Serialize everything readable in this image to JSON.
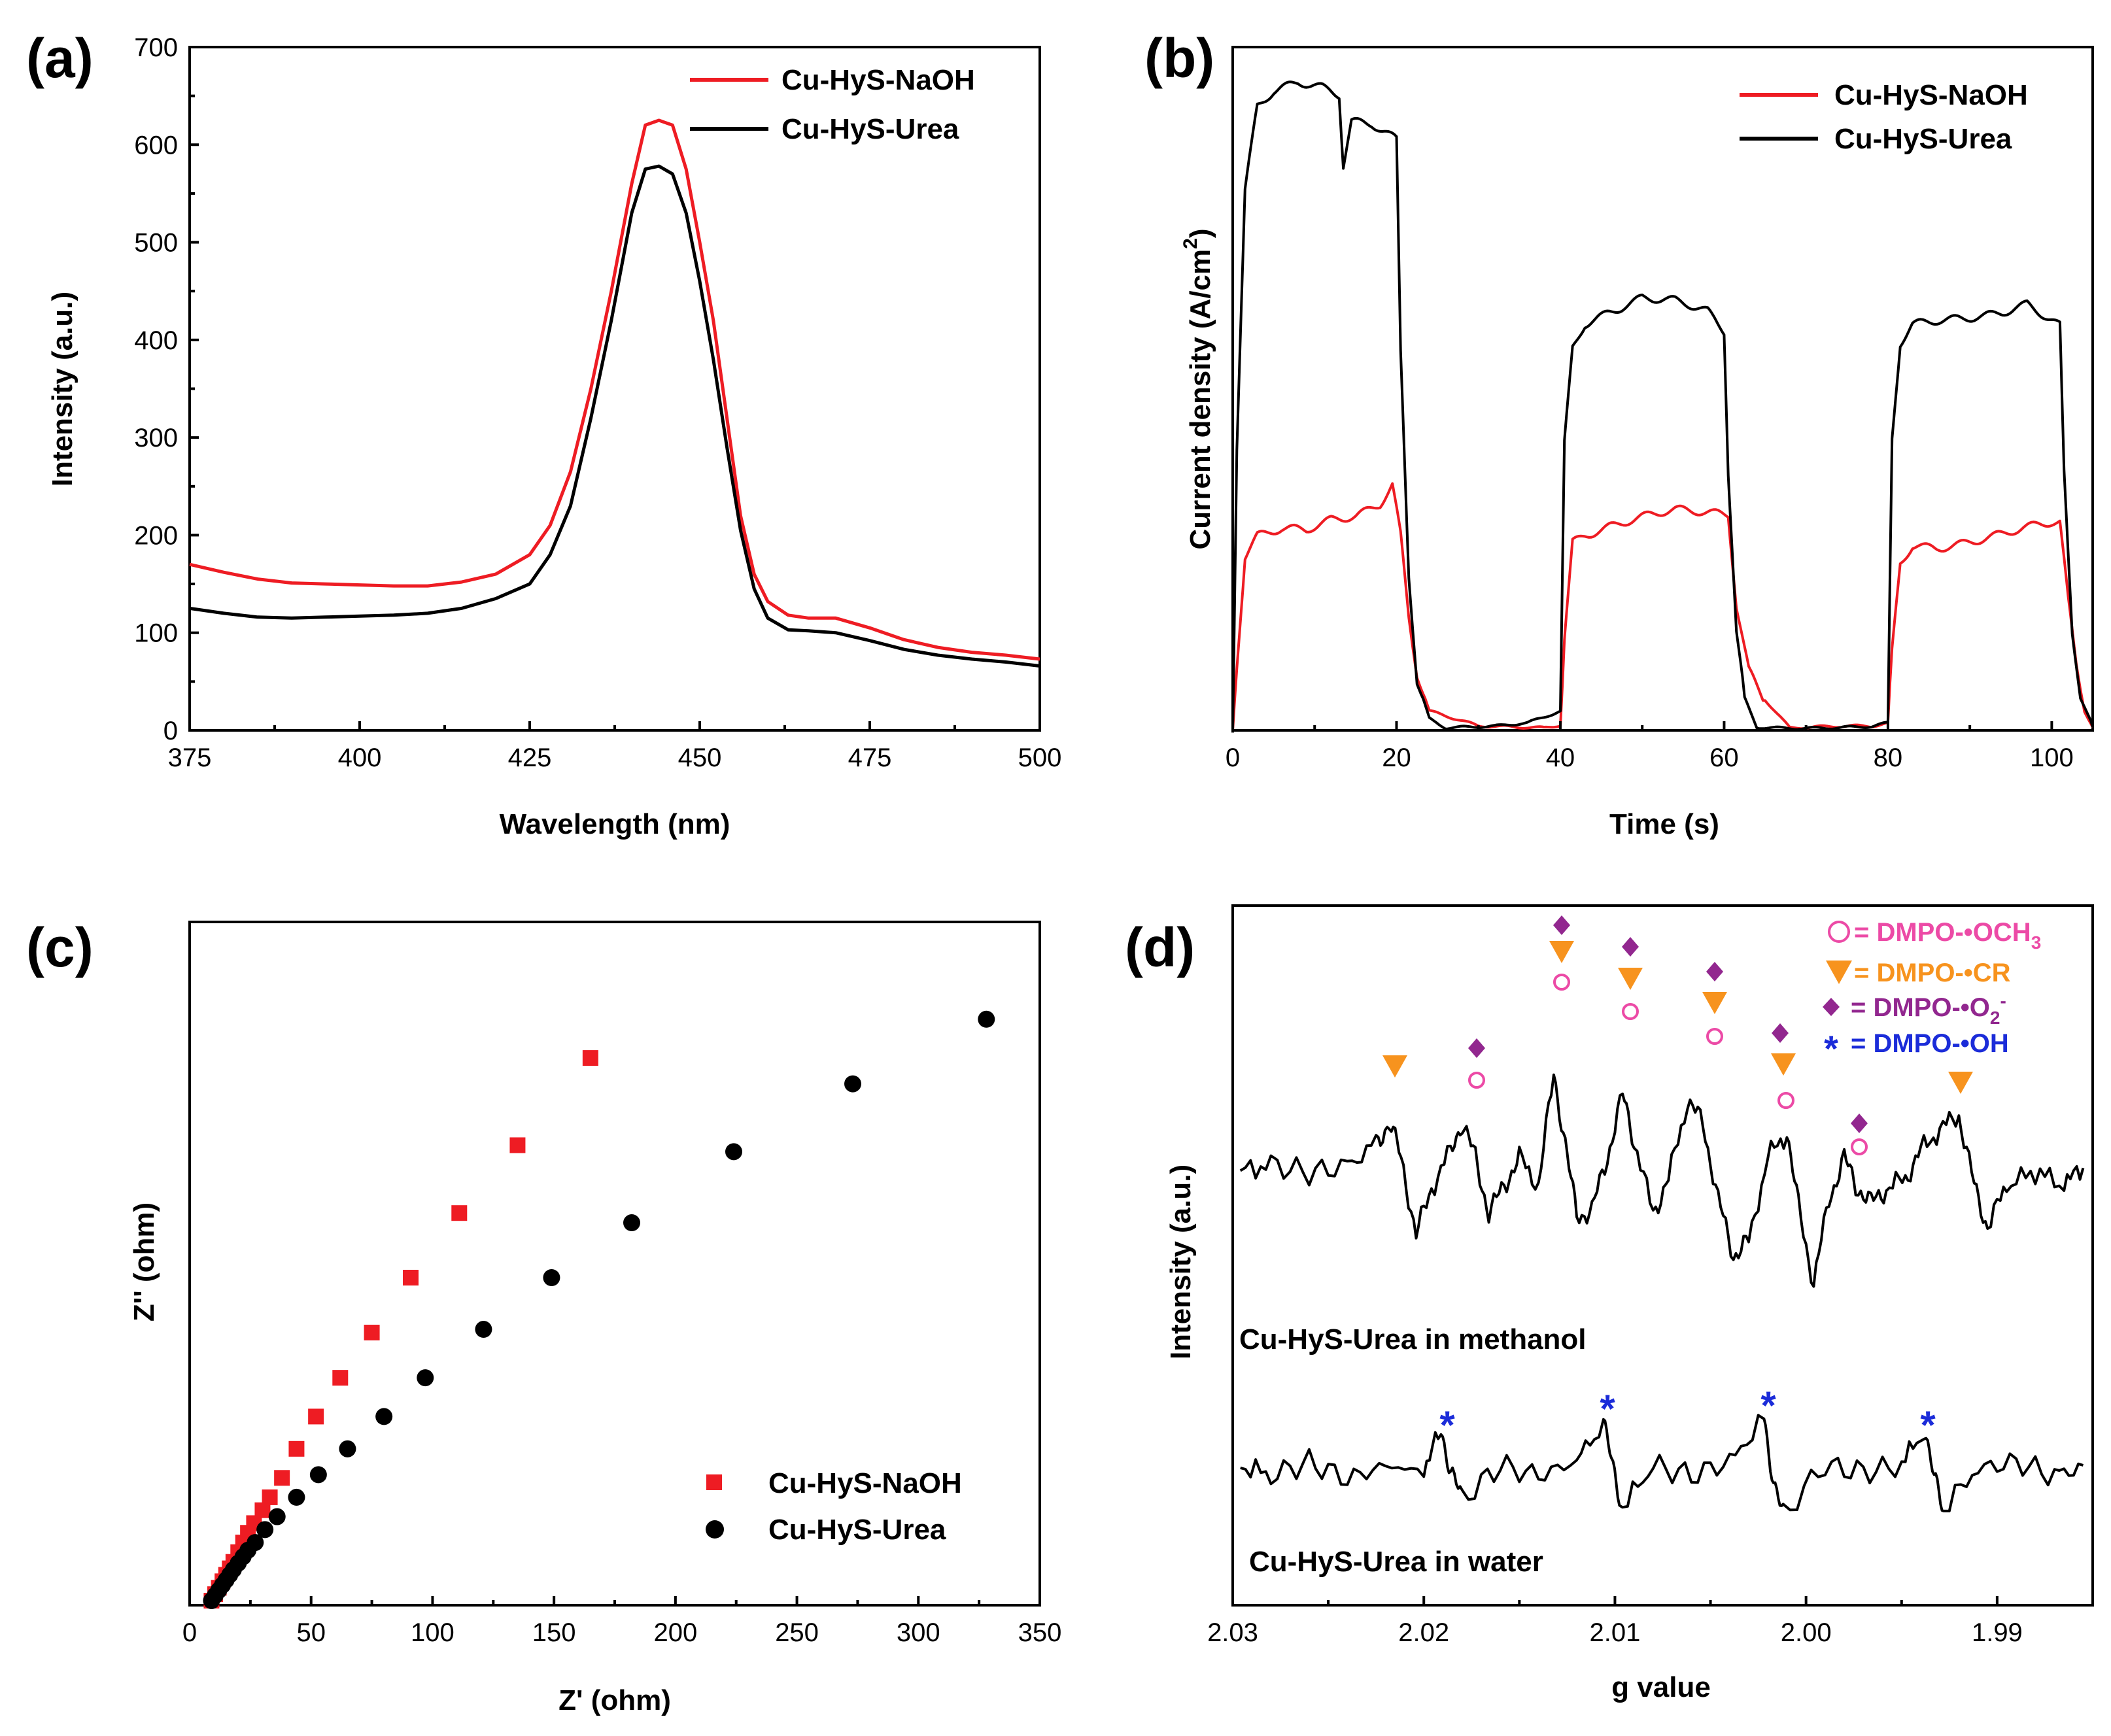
{
  "colors": {
    "naoh": "#ee1c23",
    "urea": "#000000",
    "ring": "#ec4aa6",
    "triangle": "#f7931e",
    "diamond": "#92278f",
    "star": "#1b2cd9"
  },
  "chart_data": [
    {
      "id": "a",
      "type": "line",
      "panel_label": "(a)",
      "title": "",
      "xlabel": "Wavelength (nm)",
      "ylabel": "Intensity (a.u.)",
      "xlim": [
        375,
        500
      ],
      "ylim": [
        0,
        700
      ],
      "xticks": [
        375,
        400,
        425,
        450,
        475,
        500
      ],
      "yticks": [
        0,
        100,
        200,
        300,
        400,
        500,
        600,
        700
      ],
      "legend": [
        "Cu-HyS-NaOH",
        "Cu-HyS-Urea"
      ],
      "series": [
        {
          "name": "Cu-HyS-NaOH",
          "color_key": "naoh",
          "x": [
            375,
            380,
            385,
            390,
            395,
            400,
            405,
            410,
            415,
            420,
            425,
            428,
            431,
            434,
            437,
            440,
            442,
            444,
            446,
            448,
            450,
            452,
            454,
            456,
            458,
            460,
            463,
            466,
            470,
            475,
            480,
            485,
            490,
            495,
            500
          ],
          "y": [
            170,
            162,
            155,
            151,
            150,
            149,
            148,
            148,
            152,
            160,
            180,
            210,
            265,
            350,
            450,
            560,
            620,
            625,
            620,
            575,
            500,
            420,
            320,
            220,
            160,
            132,
            118,
            115,
            115,
            105,
            93,
            85,
            80,
            77,
            73
          ]
        },
        {
          "name": "Cu-HyS-Urea",
          "color_key": "urea",
          "x": [
            375,
            380,
            385,
            390,
            395,
            400,
            405,
            410,
            415,
            420,
            425,
            428,
            431,
            434,
            437,
            440,
            442,
            444,
            446,
            448,
            450,
            452,
            454,
            456,
            458,
            460,
            463,
            466,
            470,
            475,
            480,
            485,
            490,
            495,
            500
          ],
          "y": [
            125,
            120,
            116,
            115,
            116,
            117,
            118,
            120,
            125,
            135,
            150,
            180,
            230,
            320,
            420,
            530,
            575,
            578,
            570,
            530,
            460,
            380,
            290,
            205,
            145,
            115,
            103,
            102,
            100,
            92,
            83,
            77,
            73,
            70,
            66
          ]
        }
      ]
    },
    {
      "id": "b",
      "type": "line",
      "panel_label": "(b)",
      "title": "",
      "xlabel": "Time (s)",
      "ylabel": "Current density (A/cm2)",
      "ylabel_main": "Current density (A/cm",
      "ylabel_sup": "2",
      "ylabel_tail": ")",
      "xlim": [
        0,
        105
      ],
      "ylim": [
        0,
        1
      ],
      "xticks": [
        0,
        20,
        40,
        60,
        80,
        100
      ],
      "yticks": [],
      "legend": [
        "Cu-HyS-NaOH",
        "Cu-HyS-Urea"
      ],
      "series": [
        {
          "name": "Cu-HyS-NaOH",
          "color_key": "naoh",
          "x": [
            0,
            0.5,
            1.5,
            3,
            6,
            9,
            12,
            15,
            18,
            19.5,
            20.5,
            21.5,
            22.5,
            24,
            30,
            38,
            40,
            40.5,
            41.5,
            43,
            46,
            50,
            54,
            58,
            60.5,
            61.5,
            63,
            65,
            68,
            78,
            80,
            80.5,
            81.5,
            83,
            86,
            90,
            95,
            100,
            101,
            102,
            103,
            104,
            105
          ],
          "y": [
            0,
            0.1,
            0.27,
            0.3,
            0.31,
            0.31,
            0.33,
            0.34,
            0.36,
            0.39,
            0.31,
            0.18,
            0.09,
            0.03,
            0.005,
            0.005,
            0.01,
            0.15,
            0.3,
            0.31,
            0.32,
            0.33,
            0.34,
            0.34,
            0.34,
            0.2,
            0.1,
            0.05,
            0.005,
            0.005,
            0.01,
            0.12,
            0.26,
            0.29,
            0.29,
            0.3,
            0.31,
            0.32,
            0.32,
            0.2,
            0.1,
            0.03,
            0.005
          ]
        },
        {
          "name": "Cu-HyS-Urea",
          "color_key": "urea",
          "x": [
            0,
            0.5,
            1.5,
            3,
            5,
            8,
            11,
            13,
            13.5,
            14.5,
            17,
            20,
            20.5,
            21.5,
            22.5,
            24,
            26,
            32,
            36,
            38,
            40,
            40.5,
            41.5,
            43,
            46,
            50,
            54,
            58,
            60,
            60.5,
            61.5,
            62.5,
            64,
            66,
            72,
            78,
            80,
            80.5,
            81.5,
            83,
            86,
            90,
            94,
            97,
            99,
            101,
            101.5,
            102.5,
            103.5,
            105
          ],
          "y": [
            0,
            0.45,
            0.85,
            0.98,
            1.0,
            1.01,
            1.0,
            0.99,
            0.88,
            0.95,
            0.95,
            0.93,
            0.6,
            0.25,
            0.08,
            0.02,
            0.005,
            0.005,
            0.01,
            0.02,
            0.03,
            0.45,
            0.6,
            0.64,
            0.66,
            0.68,
            0.67,
            0.65,
            0.62,
            0.4,
            0.15,
            0.05,
            0.005,
            0.005,
            0.005,
            0.005,
            0.01,
            0.45,
            0.6,
            0.63,
            0.64,
            0.65,
            0.66,
            0.67,
            0.65,
            0.63,
            0.4,
            0.15,
            0.05,
            0.005
          ]
        }
      ]
    },
    {
      "id": "c",
      "type": "scatter",
      "panel_label": "(c)",
      "title": "",
      "xlabel": "Z' (ohm)",
      "ylabel": "Z'' (ohm)",
      "xlim": [
        0,
        350
      ],
      "ylim": [
        0,
        1
      ],
      "xticks": [
        0,
        50,
        100,
        150,
        200,
        250,
        300,
        350
      ],
      "yticks": [],
      "legend": [
        "Cu-HyS-NaOH",
        "Cu-HyS-Urea"
      ],
      "series": [
        {
          "name": "Cu-HyS-NaOH",
          "marker": "square",
          "color_key": "naoh",
          "x": [
            9,
            10.5,
            12,
            13.5,
            15,
            16.5,
            18,
            20,
            22,
            24,
            26.5,
            30,
            33,
            38,
            44,
            52,
            62,
            75,
            91,
            111,
            135,
            165
          ],
          "y": [
            0.0,
            0.01,
            0.02,
            0.03,
            0.04,
            0.05,
            0.06,
            0.075,
            0.09,
            0.105,
            0.12,
            0.14,
            0.16,
            0.19,
            0.235,
            0.285,
            0.345,
            0.415,
            0.5,
            0.6,
            0.705,
            0.84
          ]
        },
        {
          "name": "Cu-HyS-Urea",
          "marker": "circle",
          "color_key": "urea",
          "x": [
            9,
            10.5,
            12,
            13.5,
            15,
            16.5,
            18,
            20,
            22,
            24,
            27,
            31,
            36,
            44,
            53,
            65,
            80,
            97,
            121,
            149,
            182,
            224,
            273,
            328
          ],
          "y": [
            0.0,
            0.008,
            0.016,
            0.024,
            0.032,
            0.04,
            0.048,
            0.058,
            0.068,
            0.078,
            0.09,
            0.11,
            0.13,
            0.16,
            0.195,
            0.235,
            0.285,
            0.345,
            0.42,
            0.5,
            0.585,
            0.695,
            0.8,
            0.9
          ]
        }
      ]
    },
    {
      "id": "d",
      "type": "line",
      "panel_label": "(d)",
      "title": "",
      "xlabel": "g value",
      "ylabel": "Intensity (a.u.)",
      "xlim": [
        2.03,
        1.985
      ],
      "ylim": [
        0,
        1
      ],
      "x_reversed": true,
      "xticks": [
        2.03,
        2.02,
        2.01,
        2.0,
        1.99
      ],
      "xtick_labels": [
        "2.03",
        "2.02",
        "2.01",
        "2.00",
        "1.99"
      ],
      "yticks": [],
      "trace_labels": [
        "Cu-HyS-Urea in methanol",
        "Cu-HyS-Urea in water"
      ],
      "marker_legend": [
        {
          "symbol": "ring",
          "color_key": "ring",
          "text_prefix": "= DMPO-",
          "radical": "•OCH",
          "subscript": "3",
          "superscript": ""
        },
        {
          "symbol": "triangle",
          "color_key": "triangle",
          "text_prefix": "= DMPO-",
          "radical": "•CR",
          "subscript": "",
          "superscript": ""
        },
        {
          "symbol": "diamond",
          "color_key": "diamond",
          "text_prefix": "= DMPO-",
          "radical": "•O",
          "subscript": "2",
          "superscript": "-"
        },
        {
          "symbol": "star",
          "color_key": "star",
          "text_prefix": "= DMPO-",
          "radical": "•OH",
          "subscript": "",
          "superscript": ""
        }
      ],
      "series": [
        {
          "name": "Cu-HyS-Urea in methanol",
          "color_key": "urea",
          "x": [
            2.0296,
            2.028,
            2.026,
            2.024,
            2.0225,
            2.0218,
            2.0212,
            2.0204,
            2.0196,
            2.0186,
            2.018,
            2.0173,
            2.0166,
            2.0158,
            2.015,
            2.014,
            2.0132,
            2.0126,
            2.012,
            2.0112,
            2.0104,
            2.0096,
            2.009,
            2.008,
            2.0072,
            2.0062,
            2.0054,
            2.0046,
            2.0038,
            2.003,
            2.002,
            2.001,
            2.0004,
            1.9996,
            1.9988,
            1.998,
            1.9974,
            1.9966,
            1.9958,
            1.9948,
            1.994,
            1.993,
            1.992,
            1.9912,
            1.9905,
            1.9895,
            1.988,
            1.9865,
            1.9855
          ],
          "y": [
            0.62,
            0.63,
            0.618,
            0.628,
            0.66,
            0.69,
            0.64,
            0.53,
            0.595,
            0.65,
            0.69,
            0.64,
            0.56,
            0.6,
            0.64,
            0.6,
            0.76,
            0.66,
            0.555,
            0.565,
            0.64,
            0.73,
            0.665,
            0.56,
            0.61,
            0.72,
            0.69,
            0.58,
            0.5,
            0.52,
            0.64,
            0.675,
            0.57,
            0.46,
            0.58,
            0.64,
            0.6,
            0.575,
            0.595,
            0.61,
            0.65,
            0.68,
            0.7,
            0.6,
            0.54,
            0.6,
            0.62,
            0.6,
            0.625
          ]
        },
        {
          "name": "Cu-HyS-Urea in water",
          "color_key": "urea",
          "x": [
            2.0296,
            2.028,
            2.026,
            2.024,
            2.022,
            2.02,
            2.0191,
            2.0186,
            2.018,
            2.016,
            2.014,
            2.012,
            2.0106,
            2.0101,
            2.0096,
            2.008,
            2.006,
            2.004,
            2.0022,
            2.0017,
            2.0012,
            1.999,
            1.997,
            1.995,
            1.9938,
            1.9933,
            1.9928,
            1.991,
            1.989,
            1.987,
            1.9855
          ],
          "y": [
            0.2,
            0.185,
            0.205,
            0.18,
            0.2,
            0.19,
            0.25,
            0.195,
            0.15,
            0.2,
            0.185,
            0.205,
            0.26,
            0.195,
            0.14,
            0.2,
            0.185,
            0.205,
            0.265,
            0.18,
            0.13,
            0.2,
            0.19,
            0.2,
            0.25,
            0.18,
            0.14,
            0.195,
            0.205,
            0.185,
            0.2
          ]
        }
      ]
    }
  ]
}
